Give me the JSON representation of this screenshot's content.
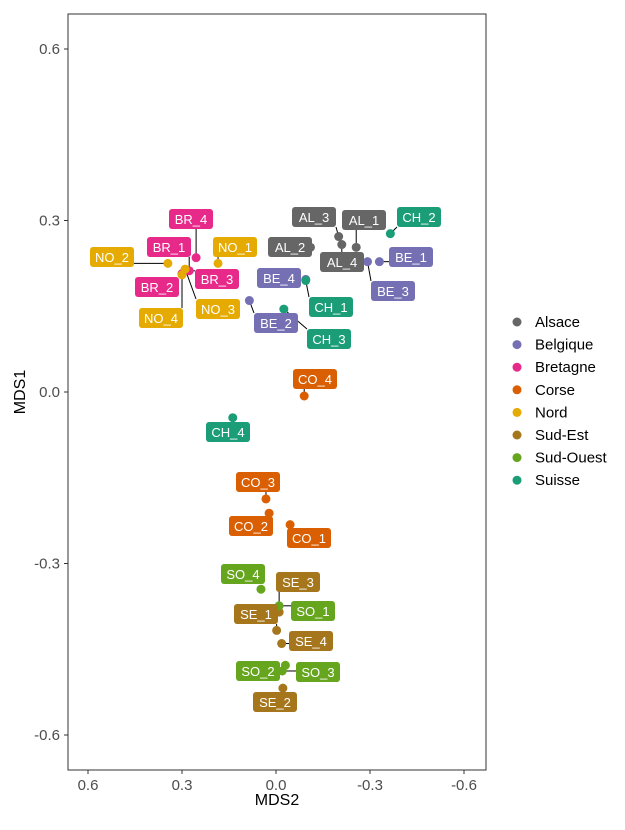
{
  "chart_data": {
    "type": "scatter",
    "xlabel": "MDS2",
    "ylabel": "MDS1",
    "xlim": [
      0.6,
      -0.6
    ],
    "ylim": [
      -0.6,
      0.6
    ],
    "x_reversed": true,
    "xticks": [
      0.6,
      0.3,
      0.0,
      -0.3,
      -0.6
    ],
    "xtick_labels": [
      "0.6",
      "0.3",
      "0.0",
      "-0.3",
      "-0.6"
    ],
    "yticks": [
      0.6,
      0.3,
      0.0,
      -0.3,
      -0.6
    ],
    "ytick_labels": [
      "0.6",
      "0.3",
      "0.0",
      "-0.3",
      "-0.6"
    ],
    "grid": false,
    "legend_position": "right",
    "series": [
      {
        "name": "Alsace",
        "color": "#666666",
        "points": [
          {
            "label": "AL_1",
            "x": -0.256,
            "y": 0.253
          },
          {
            "label": "AL_2",
            "x": -0.11,
            "y": 0.253
          },
          {
            "label": "AL_3",
            "x": -0.2,
            "y": 0.272
          },
          {
            "label": "AL_4",
            "x": -0.21,
            "y": 0.258
          }
        ]
      },
      {
        "name": "Belgique",
        "color": "#7570b3",
        "points": [
          {
            "label": "BE_1",
            "x": -0.33,
            "y": 0.228
          },
          {
            "label": "BE_2",
            "x": 0.085,
            "y": 0.16
          },
          {
            "label": "BE_3",
            "x": -0.292,
            "y": 0.228
          },
          {
            "label": "BE_4",
            "x": -0.095,
            "y": 0.197
          }
        ]
      },
      {
        "name": "Bretagne",
        "color": "#e7298a",
        "points": [
          {
            "label": "BR_1",
            "x": 0.277,
            "y": 0.212
          },
          {
            "label": "BR_2",
            "x": 0.3,
            "y": 0.207
          },
          {
            "label": "BR_3",
            "x": 0.29,
            "y": 0.212
          },
          {
            "label": "BR_4",
            "x": 0.255,
            "y": 0.235
          }
        ]
      },
      {
        "name": "Corse",
        "color": "#d95f02",
        "points": [
          {
            "label": "CO_1",
            "x": -0.045,
            "y": -0.232
          },
          {
            "label": "CO_2",
            "x": 0.022,
            "y": -0.212
          },
          {
            "label": "CO_3",
            "x": 0.032,
            "y": -0.187
          },
          {
            "label": "CO_4",
            "x": -0.09,
            "y": -0.007
          }
        ]
      },
      {
        "name": "Nord",
        "color": "#e6ab02",
        "points": [
          {
            "label": "NO_1",
            "x": 0.185,
            "y": 0.225
          },
          {
            "label": "NO_2",
            "x": 0.345,
            "y": 0.225
          },
          {
            "label": "NO_3",
            "x": 0.29,
            "y": 0.215
          },
          {
            "label": "NO_4",
            "x": 0.3,
            "y": 0.205
          }
        ]
      },
      {
        "name": "Sud-Est",
        "color": "#a6761d",
        "points": [
          {
            "label": "SE_1",
            "x": -0.002,
            "y": -0.417
          },
          {
            "label": "SE_2",
            "x": -0.022,
            "y": -0.518
          },
          {
            "label": "SE_3",
            "x": -0.01,
            "y": -0.385
          },
          {
            "label": "SE_4",
            "x": -0.018,
            "y": -0.44
          }
        ]
      },
      {
        "name": "Sud-Ouest",
        "color": "#66a61e",
        "points": [
          {
            "label": "SO_1",
            "x": -0.01,
            "y": -0.374
          },
          {
            "label": "SO_2",
            "x": -0.03,
            "y": -0.478
          },
          {
            "label": "SO_3",
            "x": -0.02,
            "y": -0.488
          },
          {
            "label": "SO_4",
            "x": 0.048,
            "y": -0.345
          }
        ]
      },
      {
        "name": "Suisse",
        "color": "#1b9e77",
        "points": [
          {
            "label": "CH_1",
            "x": -0.095,
            "y": 0.195
          },
          {
            "label": "CH_2",
            "x": -0.365,
            "y": 0.277
          },
          {
            "label": "CH_3",
            "x": -0.025,
            "y": 0.145
          },
          {
            "label": "CH_4",
            "x": 0.138,
            "y": -0.045
          }
        ]
      }
    ]
  }
}
